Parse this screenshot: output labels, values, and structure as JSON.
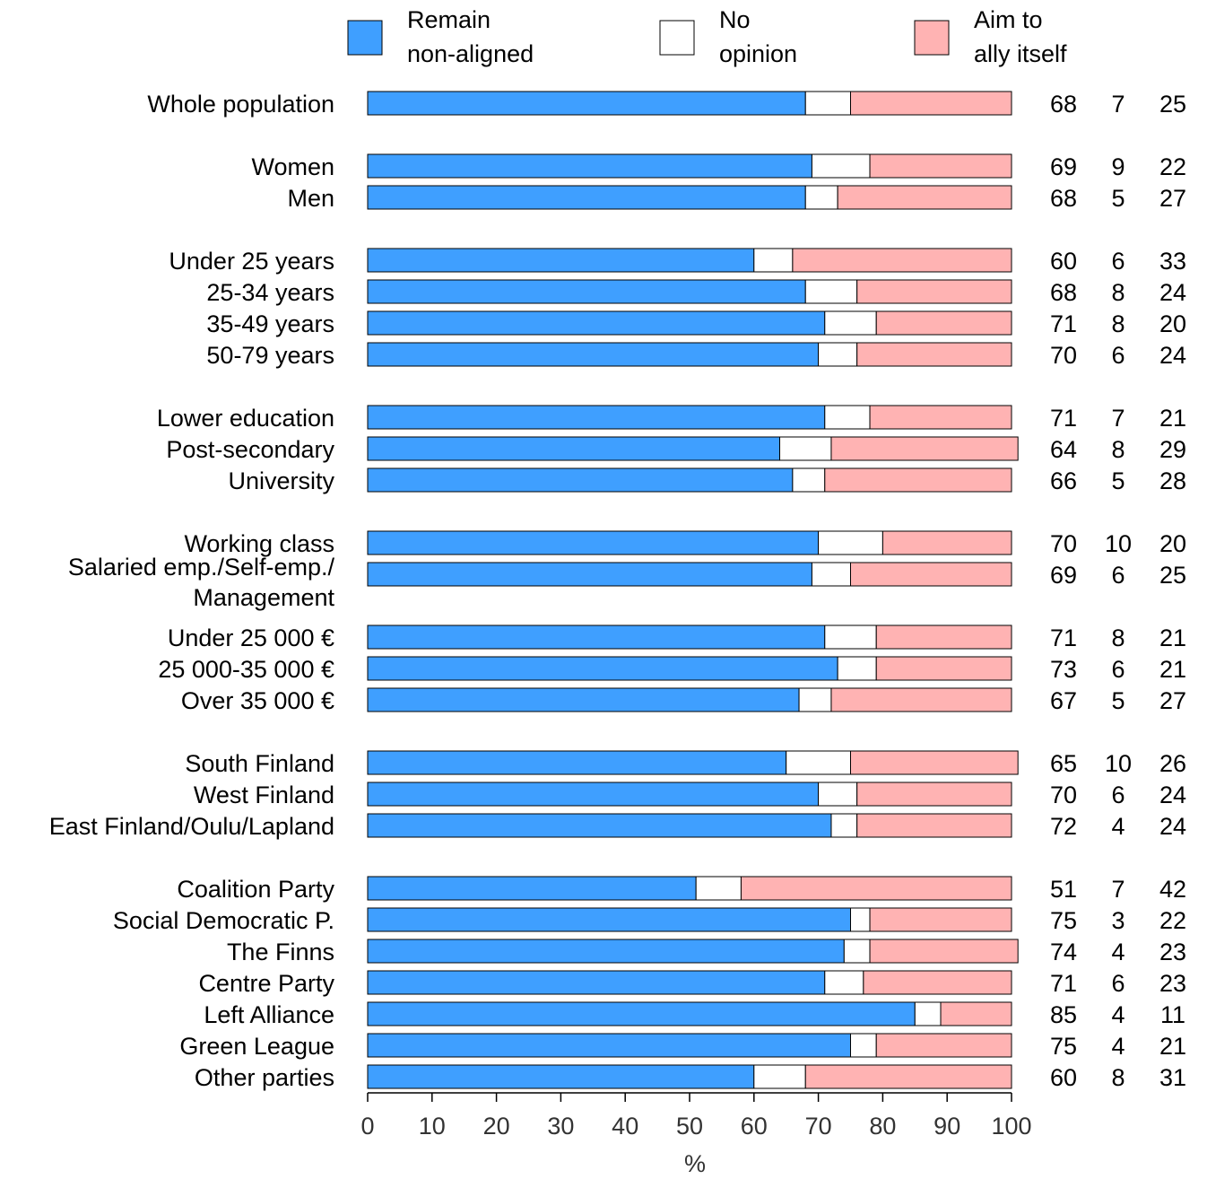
{
  "chart_data": {
    "type": "bar",
    "orientation": "horizontal",
    "stacked": true,
    "xlabel": "%",
    "xlim": [
      0,
      100
    ],
    "xticks": [
      0,
      10,
      20,
      30,
      40,
      50,
      60,
      70,
      80,
      90,
      100
    ],
    "legend": {
      "placement": "top",
      "items": [
        {
          "line1": "Remain",
          "line2": "non-aligned",
          "color": "#3f9fff"
        },
        {
          "line1": "No",
          "line2": "opinion",
          "color": "#ffffff"
        },
        {
          "line1": "Aim to",
          "line2": "ally itself",
          "color": "#ffb3b3"
        }
      ]
    },
    "series": [
      {
        "name": "Remain non-aligned",
        "color": "#3f9fff"
      },
      {
        "name": "No opinion",
        "color": "#ffffff"
      },
      {
        "name": "Aim to ally itself",
        "color": "#ffb3b3"
      }
    ],
    "rows": [
      {
        "label": [
          "Whole population"
        ],
        "values": [
          68,
          7,
          25
        ]
      },
      {
        "label": [
          "Women"
        ],
        "values": [
          69,
          9,
          22
        ]
      },
      {
        "label": [
          "Men"
        ],
        "values": [
          68,
          5,
          27
        ]
      },
      {
        "label": [
          "Under 25 years"
        ],
        "values": [
          60,
          6,
          33
        ]
      },
      {
        "label": [
          "25-34 years"
        ],
        "values": [
          68,
          8,
          24
        ]
      },
      {
        "label": [
          "35-49 years"
        ],
        "values": [
          71,
          8,
          20
        ]
      },
      {
        "label": [
          "50-79 years"
        ],
        "values": [
          70,
          6,
          24
        ]
      },
      {
        "label": [
          "Lower education"
        ],
        "values": [
          71,
          7,
          21
        ]
      },
      {
        "label": [
          "Post-secondary"
        ],
        "values": [
          64,
          8,
          29
        ]
      },
      {
        "label": [
          "University"
        ],
        "values": [
          66,
          5,
          28
        ]
      },
      {
        "label": [
          "Working class"
        ],
        "values": [
          70,
          10,
          20
        ]
      },
      {
        "label": [
          "Salaried emp./Self-emp./",
          "Management"
        ],
        "values": [
          69,
          6,
          25
        ]
      },
      {
        "label": [
          "Under 25 000 €"
        ],
        "values": [
          71,
          8,
          21
        ]
      },
      {
        "label": [
          "25 000-35 000 €"
        ],
        "values": [
          73,
          6,
          21
        ]
      },
      {
        "label": [
          "Over 35 000 €"
        ],
        "values": [
          67,
          5,
          27
        ]
      },
      {
        "label": [
          "South Finland"
        ],
        "values": [
          65,
          10,
          26
        ]
      },
      {
        "label": [
          "West Finland"
        ],
        "values": [
          70,
          6,
          24
        ]
      },
      {
        "label": [
          "East Finland/Oulu/Lapland"
        ],
        "values": [
          72,
          4,
          24
        ]
      },
      {
        "label": [
          "Coalition Party"
        ],
        "values": [
          51,
          7,
          42
        ]
      },
      {
        "label": [
          "Social Democratic P."
        ],
        "values": [
          75,
          3,
          22
        ]
      },
      {
        "label": [
          "The Finns"
        ],
        "values": [
          74,
          4,
          23
        ]
      },
      {
        "label": [
          "Centre Party"
        ],
        "values": [
          71,
          6,
          23
        ]
      },
      {
        "label": [
          "Left Alliance"
        ],
        "values": [
          85,
          4,
          11
        ]
      },
      {
        "label": [
          "Green League"
        ],
        "values": [
          75,
          4,
          21
        ]
      },
      {
        "label": [
          "Other parties"
        ],
        "values": [
          60,
          8,
          31
        ]
      }
    ]
  }
}
